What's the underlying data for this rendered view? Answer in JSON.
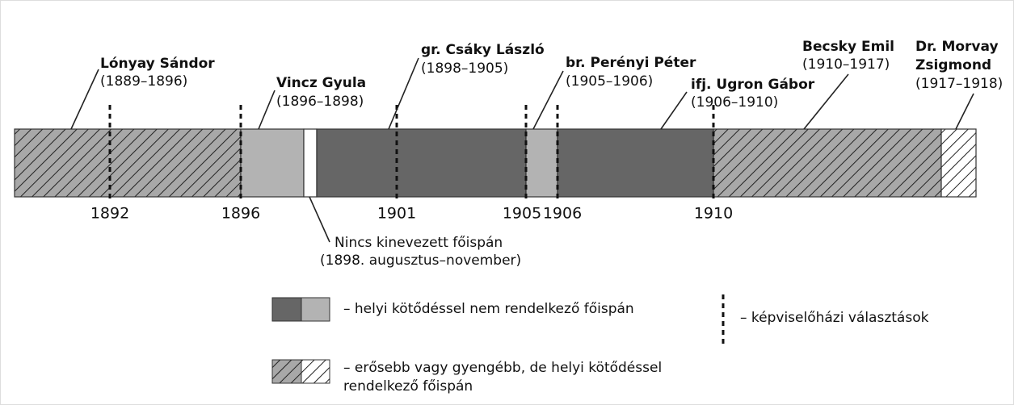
{
  "officials": [
    {
      "name": "Lónyay Sándor",
      "term": "(1889–1896)"
    },
    {
      "name": "Vincz Gyula",
      "term": "(1896–1898)"
    },
    {
      "name": "gr. Csáky László",
      "term": "(1898–1905)"
    },
    {
      "name": "br. Perényi Péter",
      "term": "(1905–1906)"
    },
    {
      "name": "ifj. Ugron Gábor",
      "term": "(1906–1910)"
    },
    {
      "name": "Becsky Emil",
      "term": "(1910–1917)"
    },
    {
      "name_lines": [
        "Dr. Morvay",
        "Zsigmond"
      ],
      "term": "(1917–1918)"
    }
  ],
  "years": [
    "1892",
    "1896",
    "1901",
    "1905",
    "1906",
    "1910"
  ],
  "gap_note": [
    "Nincs kinevezett főispán",
    "(1898. augusztus–november)"
  ],
  "legend": {
    "no_local_ties": "– helyi kötődéssel nem rendelkező főispán",
    "elections": "– képviselőházi választások",
    "local_ties": [
      "– erősebb vagy gyengébb, de helyi kötődéssel",
      "rendelkező főispán"
    ]
  }
}
